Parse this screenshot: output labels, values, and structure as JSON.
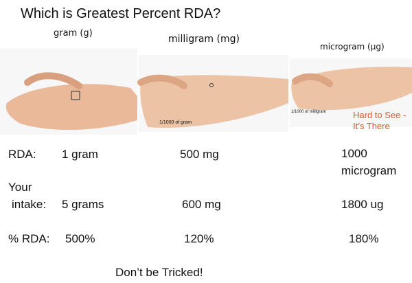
{
  "header": {
    "title": "Which is Greatest Percent RDA?"
  },
  "panels": [
    {
      "label": "gram (g)"
    },
    {
      "label": "milligram (mg)",
      "note": "1/1000 of gram"
    },
    {
      "label": "microgram (µg)",
      "note": "1/1000 of milligram",
      "callout": [
        "Hard to See -",
        "It’s There"
      ]
    }
  ],
  "table": {
    "rows": [
      {
        "label": [
          "RDA:"
        ],
        "cells": [
          [
            "1 gram"
          ],
          [
            "500 mg"
          ],
          [
            "1000",
            "microgram"
          ]
        ]
      },
      {
        "label": [
          "Your",
          "intake:"
        ],
        "cells": [
          [
            "5 grams"
          ],
          [
            "600 mg"
          ],
          [
            "1800 ug"
          ]
        ]
      },
      {
        "label": [
          "% RDA:"
        ],
        "cells": [
          [
            "500%"
          ],
          [
            "120%"
          ],
          [
            "180%"
          ]
        ]
      }
    ]
  },
  "footer": {
    "text": "Don’t be Tricked!"
  }
}
